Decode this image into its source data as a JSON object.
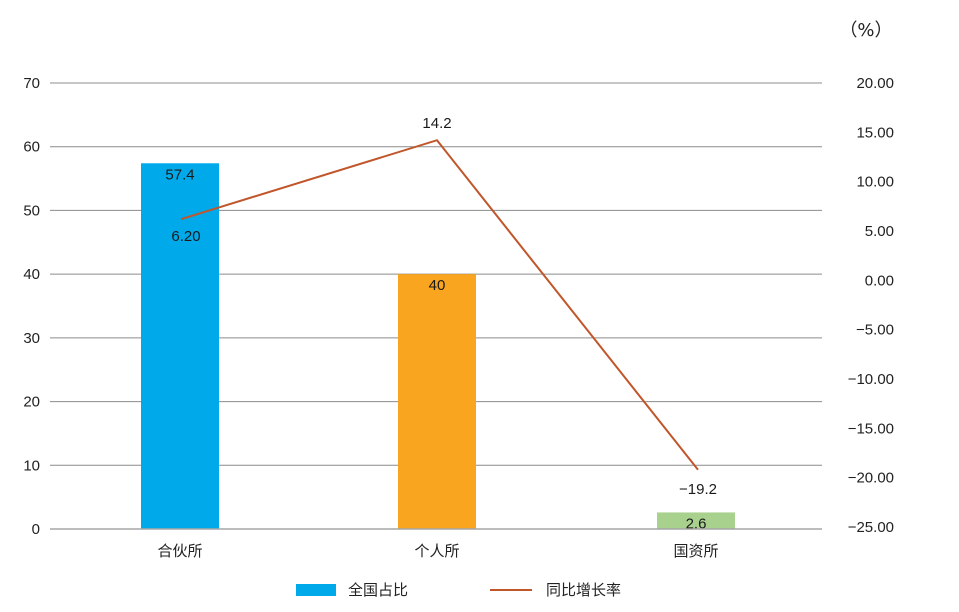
{
  "chart_data": {
    "type": "bar+line",
    "title": "",
    "categories": [
      "合伙所",
      "个人所",
      "国资所"
    ],
    "series": [
      {
        "name": "全国占比",
        "type": "bar",
        "axis": "left",
        "values": [
          57.4,
          40,
          2.6
        ],
        "value_labels": [
          "57.4",
          "40",
          "2.6"
        ],
        "colors": [
          "#00aaea",
          "#f9a51f",
          "#a9d18e"
        ]
      },
      {
        "name": "同比增长率",
        "type": "line",
        "axis": "right",
        "values": [
          6.2,
          14.2,
          -19.2
        ],
        "value_labels": [
          "6.20",
          "14.2",
          "−19.2"
        ],
        "color": "#c0562a"
      }
    ],
    "left_axis": {
      "ylim": [
        0,
        70
      ],
      "ticks": [
        "0",
        "10",
        "20",
        "30",
        "40",
        "50",
        "60",
        "70"
      ]
    },
    "right_axis": {
      "unit": "（%）",
      "ylim": [
        -25,
        20
      ],
      "ticks": [
        "20.00",
        "15.00",
        "10.00",
        "5.00",
        "0.00",
        "−5.00",
        "−10.00",
        "−15.00",
        "−20.00",
        "−25.00"
      ]
    },
    "grid": true,
    "legend_position": "bottom"
  },
  "legend": {
    "bar_label": "全国占比",
    "line_label": "同比增长率"
  }
}
